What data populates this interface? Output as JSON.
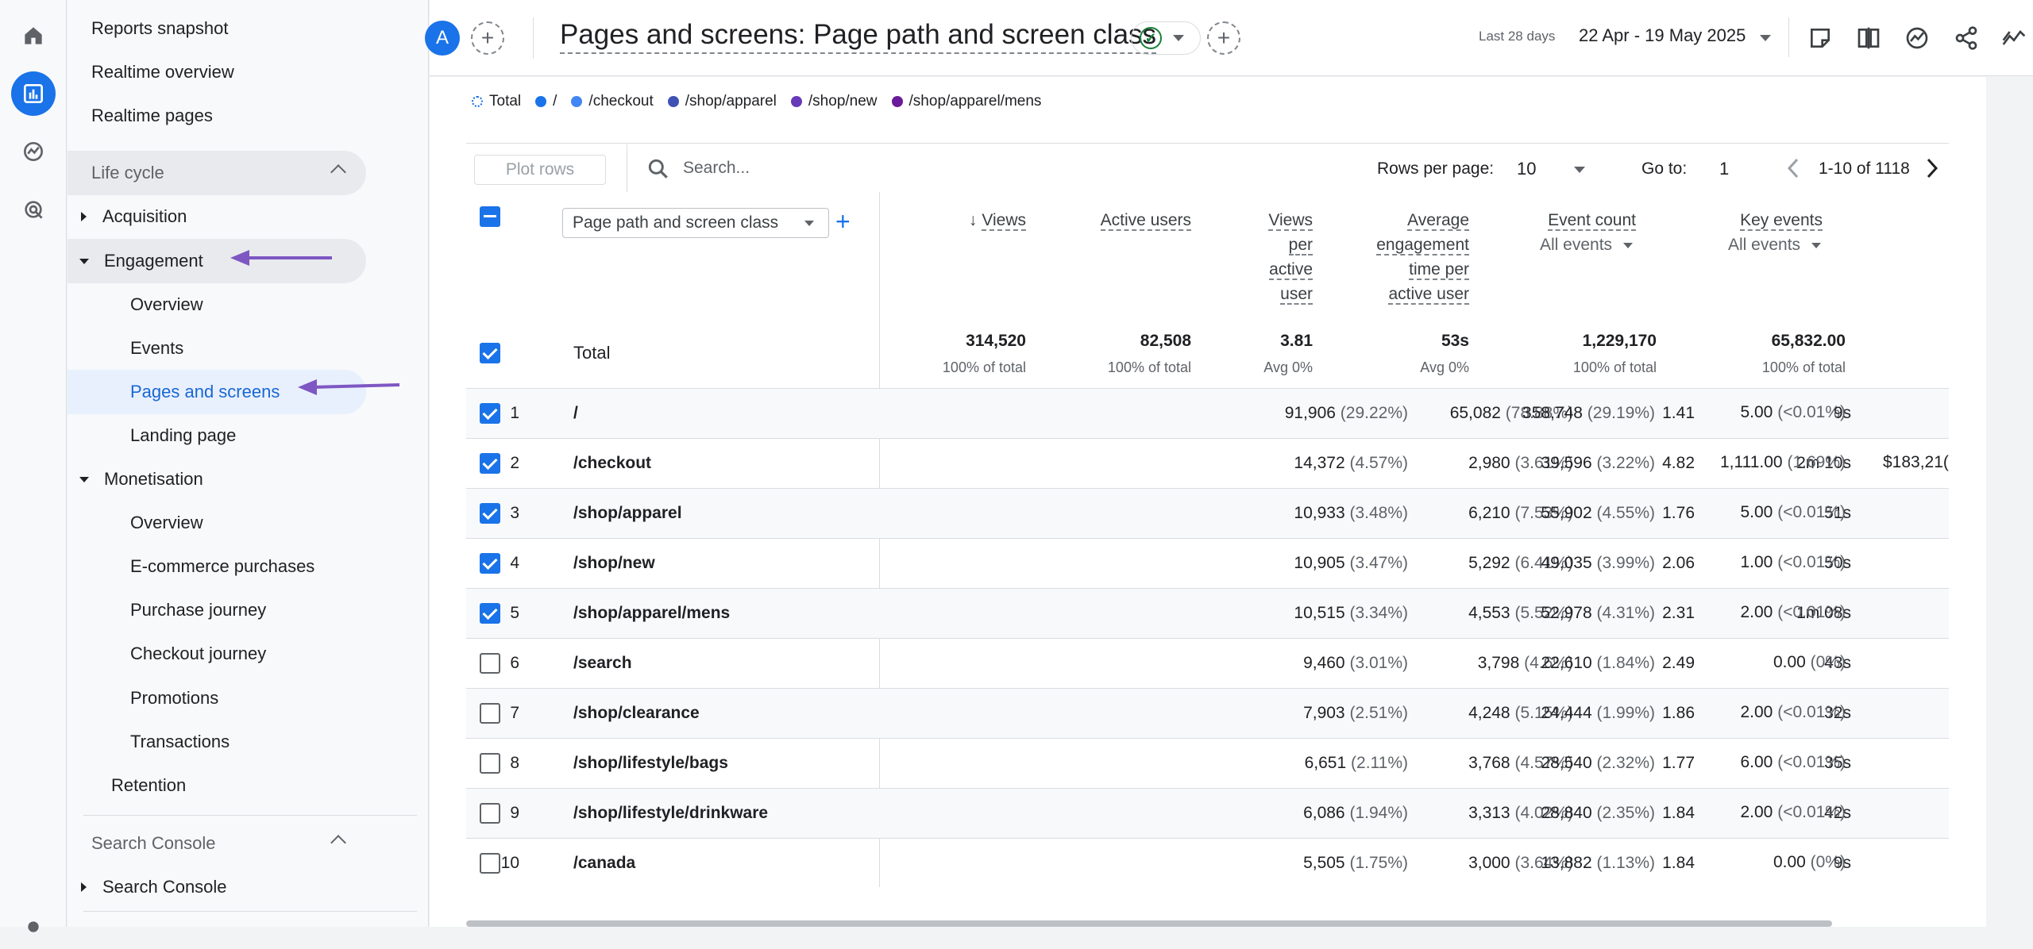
{
  "nav": {
    "items": [
      {
        "label": "Reports snapshot"
      },
      {
        "label": "Realtime overview"
      },
      {
        "label": "Realtime pages"
      },
      {
        "label": "Life cycle"
      },
      {
        "label": "Acquisition"
      },
      {
        "label": "Engagement"
      },
      {
        "label": "Overview"
      },
      {
        "label": "Events"
      },
      {
        "label": "Pages and screens"
      },
      {
        "label": "Landing page"
      },
      {
        "label": "Monetisation"
      },
      {
        "label": "Overview"
      },
      {
        "label": "E-commerce purchases"
      },
      {
        "label": "Purchase journey"
      },
      {
        "label": "Checkout journey"
      },
      {
        "label": "Promotions"
      },
      {
        "label": "Transactions"
      },
      {
        "label": "Retention"
      },
      {
        "label": "Search Console"
      },
      {
        "label": "Search Console"
      }
    ]
  },
  "header": {
    "avatar": "A",
    "title": "Pages and screens: Page path and screen class",
    "date_label": "Last 28 days",
    "date_range": "22 Apr - 19 May 2025"
  },
  "legend": [
    {
      "label": "Total",
      "color": "#1a73e8"
    },
    {
      "label": "/",
      "color": "#1a73e8"
    },
    {
      "label": "/checkout",
      "color": "#4285f4"
    },
    {
      "label": "/shop/apparel",
      "color": "#3f51b5"
    },
    {
      "label": "/shop/new",
      "color": "#673ab7"
    },
    {
      "label": "/shop/apparel/mens",
      "color": "#6a1b9a"
    }
  ],
  "toolbar": {
    "plot_rows": "Plot rows",
    "search_placeholder": "Search...",
    "rows_per_page_label": "Rows per page:",
    "rows_per_page": "10",
    "goto_label": "Go to:",
    "goto_value": "1",
    "pager": "1-10 of 1118"
  },
  "table": {
    "dimension": "Page path and screen class",
    "headers": {
      "views": "Views",
      "active_users": "Active users",
      "views_per_user": [
        "Views",
        "per",
        "active",
        "user"
      ],
      "avg_engagement": [
        "Average",
        "engagement",
        "time per",
        "active user"
      ],
      "event_count": "Event count",
      "event_count_sub": "All events",
      "key_events": "Key events",
      "key_events_sub": "All events"
    },
    "total": {
      "label": "Total",
      "views": "314,520",
      "views_sub": "100% of total",
      "users": "82,508",
      "users_sub": "100% of total",
      "vpu": "3.81",
      "vpu_sub": "Avg 0%",
      "aet": "53s",
      "aet_sub": "Avg 0%",
      "events": "1,229,170",
      "events_sub": "100% of total",
      "key": "65,832.00",
      "key_sub": "100% of total"
    },
    "rows": [
      {
        "n": "1",
        "path": "/",
        "views": "91,906",
        "views_p": "(29.22%)",
        "users": "65,082",
        "users_p": "(78.88%)",
        "vpu": "1.41",
        "aet": "9s",
        "events": "358,748",
        "events_p": "(29.19%)",
        "key": "5.00",
        "key_p": "(<0.01%)",
        "extra": ""
      },
      {
        "n": "2",
        "path": "/checkout",
        "views": "14,372",
        "views_p": "(4.57%)",
        "users": "2,980",
        "users_p": "(3.61%)",
        "vpu": "4.82",
        "aet": "2m 10s",
        "events": "39,596",
        "events_p": "(3.22%)",
        "key": "1,111.00",
        "key_p": "(1.69%)",
        "extra": "$183,21("
      },
      {
        "n": "3",
        "path": "/shop/apparel",
        "views": "10,933",
        "views_p": "(3.48%)",
        "users": "6,210",
        "users_p": "(7.53%)",
        "vpu": "1.76",
        "aet": "51s",
        "events": "55,902",
        "events_p": "(4.55%)",
        "key": "5.00",
        "key_p": "(<0.01%)",
        "extra": ""
      },
      {
        "n": "4",
        "path": "/shop/new",
        "views": "10,905",
        "views_p": "(3.47%)",
        "users": "5,292",
        "users_p": "(6.41%)",
        "vpu": "2.06",
        "aet": "50s",
        "events": "49,035",
        "events_p": "(3.99%)",
        "key": "1.00",
        "key_p": "(<0.01%)",
        "extra": ""
      },
      {
        "n": "5",
        "path": "/shop/apparel/mens",
        "views": "10,515",
        "views_p": "(3.34%)",
        "users": "4,553",
        "users_p": "(5.52%)",
        "vpu": "2.31",
        "aet": "1m 08s",
        "events": "52,978",
        "events_p": "(4.31%)",
        "key": "2.00",
        "key_p": "(<0.01%)",
        "extra": ""
      },
      {
        "n": "6",
        "path": "/search",
        "views": "9,460",
        "views_p": "(3.01%)",
        "users": "3,798",
        "users_p": "(4.6%)",
        "vpu": "2.49",
        "aet": "43s",
        "events": "22,610",
        "events_p": "(1.84%)",
        "key": "0.00",
        "key_p": "(0%)",
        "extra": ""
      },
      {
        "n": "7",
        "path": "/shop/clearance",
        "views": "7,903",
        "views_p": "(2.51%)",
        "users": "4,248",
        "users_p": "(5.15%)",
        "vpu": "1.86",
        "aet": "32s",
        "events": "24,444",
        "events_p": "(1.99%)",
        "key": "2.00",
        "key_p": "(<0.01%)",
        "extra": ""
      },
      {
        "n": "8",
        "path": "/shop/lifestyle/bags",
        "views": "6,651",
        "views_p": "(2.11%)",
        "users": "3,768",
        "users_p": "(4.57%)",
        "vpu": "1.77",
        "aet": "35s",
        "events": "28,540",
        "events_p": "(2.32%)",
        "key": "6.00",
        "key_p": "(<0.01%)",
        "extra": ""
      },
      {
        "n": "9",
        "path": "/shop/lifestyle/drinkware",
        "views": "6,086",
        "views_p": "(1.94%)",
        "users": "3,313",
        "users_p": "(4.02%)",
        "vpu": "1.84",
        "aet": "42s",
        "events": "28,840",
        "events_p": "(2.35%)",
        "key": "2.00",
        "key_p": "(<0.01%)",
        "extra": ""
      },
      {
        "n": "10",
        "path": "/canada",
        "views": "5,505",
        "views_p": "(1.75%)",
        "users": "3,000",
        "users_p": "(3.64%)",
        "vpu": "1.84",
        "aet": "9s",
        "events": "13,882",
        "events_p": "(1.13%)",
        "key": "0.00",
        "key_p": "(0%)",
        "extra": ""
      }
    ]
  },
  "colors": {
    "accent": "#1a73e8",
    "arrow": "#7e57c2",
    "check": "#188038"
  },
  "icons": [
    "home-icon",
    "reports-icon",
    "explore-icon",
    "advertising-icon",
    "settings-icon",
    "compare-icon",
    "insights-icon",
    "share-icon",
    "trend-icon"
  ]
}
